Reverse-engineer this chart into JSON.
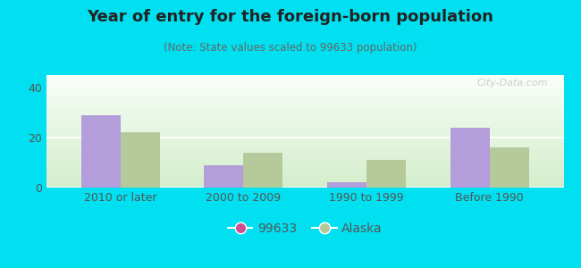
{
  "title": "Year of entry for the foreign-born population",
  "subtitle": "(Note: State values scaled to 99633 population)",
  "categories": [
    "2010 or later",
    "2000 to 2009",
    "1990 to 1999",
    "Before 1990"
  ],
  "series": [
    {
      "label": "99633",
      "values": [
        29,
        9,
        2,
        24
      ],
      "color": "#b39ddb"
    },
    {
      "label": "Alaska",
      "values": [
        22,
        14,
        11,
        16
      ],
      "color": "#b5c99a"
    }
  ],
  "ylim": [
    0,
    45
  ],
  "yticks": [
    0,
    20,
    40
  ],
  "background_color": "#00e0f0",
  "bar_width": 0.32,
  "legend_marker_color_1": "#d05090",
  "legend_marker_color_2": "#b5c99a",
  "watermark": "City-Data.com",
  "title_fontsize": 13,
  "subtitle_fontsize": 8.5,
  "tick_fontsize": 9,
  "legend_fontsize": 10
}
